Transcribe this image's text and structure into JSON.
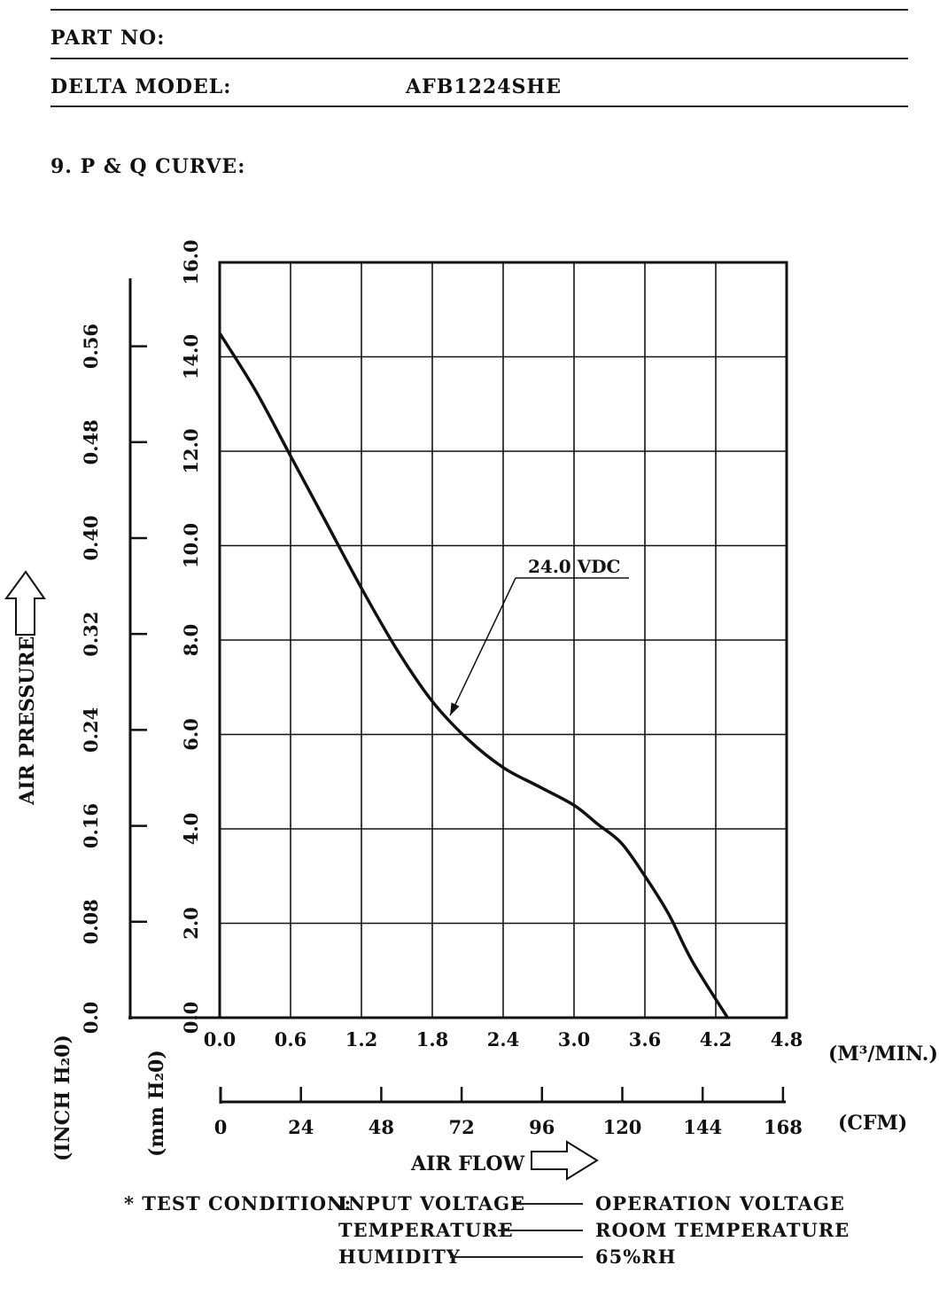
{
  "header": {
    "part_no_label": "PART NO:",
    "part_no_value": "",
    "model_label": "DELTA MODEL:",
    "model_value": "AFB1224SHE"
  },
  "section_title": "9. P & Q CURVE:",
  "chart_data": {
    "type": "line",
    "title": "P & Q CURVE",
    "xlabel": "AIR FLOW",
    "ylabel": "AIR PRESSURE",
    "x_unit": "(M³/MIN.)",
    "x2_unit": "(CFM)",
    "y_unit": "(mm H₂0)",
    "y2_unit": "(INCH H₂0)",
    "xlim": [
      0,
      4.8
    ],
    "ylim": [
      0,
      16
    ],
    "x_ticks": [
      "0.0",
      "0.6",
      "1.2",
      "1.8",
      "2.4",
      "3.0",
      "3.6",
      "4.2",
      "4.8"
    ],
    "x2_ticks": [
      "0",
      "24",
      "48",
      "72",
      "96",
      "120",
      "144",
      "168"
    ],
    "y_ticks": [
      "0.0",
      "2.0",
      "4.0",
      "6.0",
      "8.0",
      "10.0",
      "12.0",
      "14.0",
      "16.0"
    ],
    "y2_ticks": [
      "0.0",
      "0.08",
      "0.16",
      "0.24",
      "0.32",
      "0.40",
      "0.48",
      "0.56"
    ],
    "grid": true,
    "series": [
      {
        "name": "24.0 VDC",
        "x": [
          0.0,
          0.3,
          0.6,
          0.9,
          1.2,
          1.5,
          1.8,
          2.1,
          2.4,
          2.7,
          3.0,
          3.2,
          3.4,
          3.6,
          3.8,
          4.0,
          4.3
        ],
        "y": [
          14.5,
          13.3,
          11.9,
          10.5,
          9.1,
          7.8,
          6.7,
          5.9,
          5.3,
          4.9,
          4.5,
          4.1,
          3.7,
          3.0,
          2.2,
          1.2,
          0.0
        ]
      }
    ],
    "annotation": {
      "text": "24.0 VDC",
      "x": 1.95,
      "y": 6.4
    }
  },
  "test_condition": {
    "label": "* TEST CONDITION:",
    "rows": [
      {
        "name": "INPUT VOLTAGE",
        "value": "OPERATION VOLTAGE"
      },
      {
        "name": "TEMPERATURE",
        "value": "ROOM TEMPERATURE"
      },
      {
        "name": "HUMIDITY",
        "value": "65%RH"
      }
    ]
  }
}
